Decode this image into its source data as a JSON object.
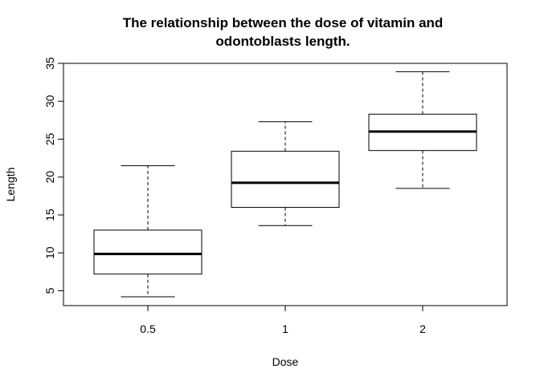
{
  "chart_data": {
    "type": "boxplot",
    "title_lines": [
      "The relationship between the dose of vitamin and",
      "odontoblasts length."
    ],
    "xlabel": "Dose",
    "ylabel": "Length",
    "categories": [
      "0.5",
      "1",
      "2"
    ],
    "yticks": [
      5,
      10,
      15,
      20,
      25,
      30,
      35
    ],
    "ylim": [
      3,
      35
    ],
    "boxes": [
      {
        "category": "0.5",
        "min": 4.2,
        "q1": 7.2,
        "median": 9.85,
        "q3": 13.0,
        "max": 21.5
      },
      {
        "category": "1",
        "min": 13.6,
        "q1": 16.0,
        "median": 19.25,
        "q3": 23.4,
        "max": 27.3
      },
      {
        "category": "2",
        "min": 18.5,
        "q1": 23.5,
        "median": 26.0,
        "q3": 28.3,
        "max": 33.9
      }
    ],
    "grid": false,
    "legend": "none"
  }
}
